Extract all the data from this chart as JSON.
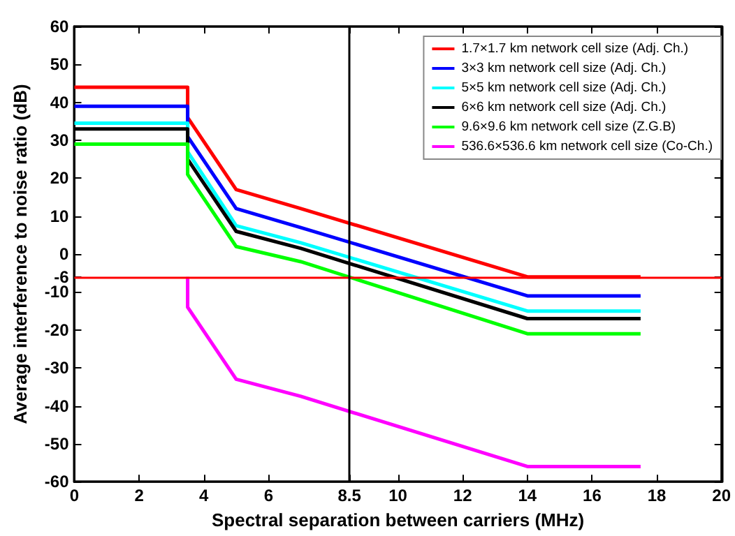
{
  "chart_data": {
    "type": "line",
    "xlabel": "Spectral separation between carriers (MHz)",
    "ylabel": "Average interference to noise ratio (dB)",
    "xlim": [
      0,
      20
    ],
    "xticks": [
      0,
      2,
      4,
      6,
      8.5,
      10,
      12,
      14,
      16,
      18,
      20
    ],
    "ylim": [
      -60,
      60
    ],
    "yticks": [
      -60,
      -50,
      -40,
      -30,
      -20,
      -10,
      -6,
      0,
      10,
      20,
      30,
      40,
      50,
      60
    ],
    "grid": false,
    "legend": "top right",
    "marker": "none",
    "line_style": "solid",
    "series": [
      {
        "name": "1.7×1.7 km network cell size (Adj. Ch.)",
        "color": "#ff0000",
        "x": [
          0,
          3.5,
          3.5,
          5,
          7,
          14,
          17.5
        ],
        "values": [
          44,
          44,
          36,
          17,
          12,
          -6,
          -6
        ]
      },
      {
        "name": "3×3 km network cell size (Adj. Ch.)",
        "color": "#0000ff",
        "x": [
          0,
          3.5,
          3.5,
          5,
          7,
          14,
          17.5
        ],
        "values": [
          39,
          39,
          31,
          12,
          7,
          -11,
          -11
        ]
      },
      {
        "name": "5×5 km network cell size (Adj. Ch.)",
        "color": "#00ffff",
        "x": [
          0,
          3.5,
          3.5,
          5,
          7,
          14,
          17.5
        ],
        "values": [
          34.5,
          34.5,
          27,
          7.5,
          3,
          -15,
          -15
        ]
      },
      {
        "name": "6×6 km network cell size (Adj. Ch.)",
        "color": "#000000",
        "x": [
          0,
          3.5,
          3.5,
          5,
          7,
          14,
          17.5
        ],
        "values": [
          33,
          33,
          25,
          6,
          1.5,
          -17,
          -17
        ]
      },
      {
        "name": "9.6×9.6 km network cell size (Z.G.B)",
        "color": "#00ff00",
        "x": [
          0,
          3.5,
          3.5,
          5,
          7,
          14,
          17.5
        ],
        "values": [
          29,
          29,
          21,
          2,
          -2,
          -21,
          -21
        ]
      },
      {
        "name": "536.6×536.6 km network cell size (Co-Ch.)",
        "color": "#ff00ff",
        "x": [
          3.5,
          3.5,
          5,
          7,
          14,
          17.5
        ],
        "values": [
          -6,
          -14,
          -33,
          -37.5,
          -56,
          -56
        ]
      }
    ],
    "ref_lines": [
      {
        "axis": "y",
        "value": -6,
        "color": "#ff0000",
        "line_style": "solid"
      },
      {
        "axis": "x",
        "value": 8.5,
        "color": "#000000",
        "line_style": "solid"
      }
    ]
  }
}
